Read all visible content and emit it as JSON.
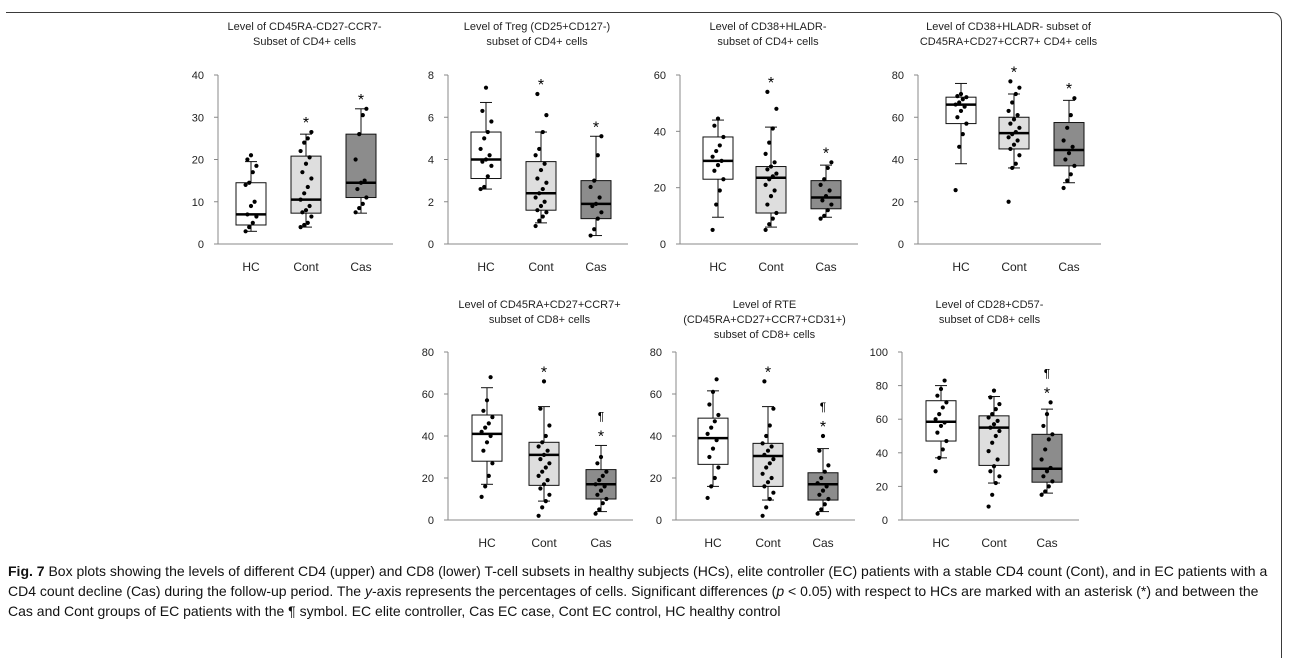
{
  "caption": {
    "fig_label": "Fig. 7",
    "text_1": " Box plots showing the levels of different CD4 (upper) and CD8 (lower) T-cell subsets in healthy subjects (HCs), elite controller (EC) patients with a stable CD4 count (Cont), and in EC patients with a CD4 count decline (Cas) during the follow-up period. The ",
    "y_italic": "y",
    "text_2": "-axis represents the percentages of cells. Significant differences (",
    "p_italic": "p",
    "text_3": " < 0.05) with respect to HCs are marked with an asterisk (*) and between the Cas and Cont groups of EC patients with the ¶ symbol. EC elite controller, Cas EC case, Cont EC control, HC healthy control"
  },
  "style": {
    "box_colors": [
      "#ffffff",
      "#dedede",
      "#8c8c8c"
    ],
    "point_color": "#000000"
  },
  "chart_data": [
    {
      "type": "box",
      "title": [
        "Level of CD45RA-CD27-CCR7-",
        "Subset of CD4+ cells"
      ],
      "categories": [
        "HC",
        "Cont",
        "Cas"
      ],
      "ylim": [
        0,
        40
      ],
      "yticks": [
        0,
        10,
        20,
        30,
        40
      ],
      "legend": "none",
      "grid": false,
      "boxes": [
        {
          "min": 3,
          "q1": 4.5,
          "median": 7,
          "q3": 14.5,
          "max": 19.5,
          "points": [
            3,
            4,
            5,
            6.5,
            7,
            9,
            10,
            14,
            14.5,
            17,
            18.5,
            20,
            21
          ],
          "markers": []
        },
        {
          "min": 4,
          "q1": 7.3,
          "median": 10.5,
          "q3": 20.8,
          "max": 26,
          "points": [
            4,
            4.5,
            5,
            6.5,
            7.5,
            8,
            9,
            10.5,
            12,
            13.5,
            15.5,
            17,
            19,
            20.5,
            22,
            24,
            25,
            26.5
          ],
          "markers": [
            "*"
          ]
        },
        {
          "min": 7.3,
          "q1": 11,
          "median": 14.5,
          "q3": 26,
          "max": 32,
          "points": [
            7.5,
            8.5,
            9.5,
            11,
            13,
            14.5,
            15,
            20,
            26,
            30.5,
            32
          ],
          "markers": [
            "*"
          ]
        }
      ]
    },
    {
      "type": "box",
      "title": [
        "Level of Treg (CD25+CD127-)",
        "subset of CD4+ cells"
      ],
      "categories": [
        "HC",
        "Cont",
        "Cas"
      ],
      "ylim": [
        0,
        8
      ],
      "yticks": [
        0,
        2,
        4,
        6,
        8
      ],
      "legend": "none",
      "grid": false,
      "boxes": [
        {
          "min": 2.6,
          "q1": 3.1,
          "median": 4,
          "q3": 5.3,
          "max": 6.7,
          "points": [
            2.6,
            2.7,
            3.2,
            3.7,
            3.9,
            4,
            4.2,
            4.5,
            5,
            5.3,
            5.8,
            6.3,
            7.4
          ],
          "markers": []
        },
        {
          "min": 1,
          "q1": 1.6,
          "median": 2.4,
          "q3": 3.9,
          "max": 5.3,
          "points": [
            0.85,
            1.1,
            1.3,
            1.5,
            1.6,
            1.8,
            2,
            2.2,
            2.4,
            2.6,
            2.9,
            3.1,
            3.5,
            3.8,
            4.2,
            4.5,
            5.3,
            6.1,
            7.1
          ],
          "markers": [
            "*"
          ]
        },
        {
          "min": 0.4,
          "q1": 1.2,
          "median": 1.9,
          "q3": 3,
          "max": 5.1,
          "points": [
            0.4,
            0.7,
            1.2,
            1.5,
            1.8,
            1.9,
            2.2,
            2.7,
            3,
            4.2,
            5.1
          ],
          "markers": [
            "*"
          ]
        }
      ]
    },
    {
      "type": "box",
      "title": [
        "Level of CD38+HLADR-",
        "subset of CD4+ cells"
      ],
      "categories": [
        "HC",
        "Cont",
        "Cas"
      ],
      "ylim": [
        0,
        60
      ],
      "yticks": [
        0,
        20,
        40,
        60
      ],
      "legend": "none",
      "grid": false,
      "boxes": [
        {
          "min": 9.5,
          "q1": 23,
          "median": 29.5,
          "q3": 38,
          "max": 44,
          "points": [
            5,
            14,
            19,
            23,
            26,
            28,
            29.5,
            31,
            33,
            35,
            38,
            42,
            44.5
          ],
          "markers": []
        },
        {
          "min": 6,
          "q1": 11,
          "median": 23.5,
          "q3": 27.5,
          "max": 41.5,
          "points": [
            5,
            7,
            9,
            11,
            14,
            17,
            19,
            21,
            23,
            24,
            25,
            26.5,
            27.5,
            29,
            32,
            36,
            41,
            48,
            54
          ],
          "markers": [
            "*"
          ]
        },
        {
          "min": 9.5,
          "q1": 12.5,
          "median": 16.5,
          "q3": 22.5,
          "max": 28,
          "points": [
            9,
            10,
            12,
            14,
            15.5,
            17,
            19,
            21,
            23,
            27,
            29
          ],
          "markers": [
            "*"
          ]
        }
      ]
    },
    {
      "type": "box",
      "title": [
        "Level of CD38+HLADR- subset of",
        "CD45RA+CD27+CCR7+ CD4+ cells"
      ],
      "categories": [
        "HC",
        "Cont",
        "Cas"
      ],
      "ylim": [
        0,
        80
      ],
      "yticks": [
        0,
        20,
        40,
        60,
        80
      ],
      "legend": "none",
      "grid": false,
      "boxes": [
        {
          "min": 38,
          "q1": 57,
          "median": 66,
          "q3": 69.5,
          "max": 76,
          "points": [
            25.5,
            46,
            52,
            57,
            60,
            63,
            65,
            66,
            67,
            68.5,
            69.5,
            70,
            71
          ],
          "markers": []
        },
        {
          "min": 36,
          "q1": 45,
          "median": 52.5,
          "q3": 60,
          "max": 71,
          "points": [
            20,
            36,
            38,
            42,
            45,
            47,
            49,
            50.5,
            52,
            53,
            55,
            57,
            59,
            61,
            63,
            67,
            71,
            74,
            77
          ],
          "markers": [
            "*"
          ]
        },
        {
          "min": 29,
          "q1": 37,
          "median": 44.5,
          "q3": 57.5,
          "max": 68,
          "points": [
            26.5,
            30,
            33,
            37,
            40,
            43,
            46,
            49,
            55,
            61,
            69
          ],
          "markers": [
            "*"
          ]
        }
      ]
    },
    {
      "type": "box",
      "title": [
        "Level of CD45RA+CD27+CCR7+",
        "subset of CD8+ cells"
      ],
      "categories": [
        "HC",
        "Cont",
        "Cas"
      ],
      "ylim": [
        0,
        80
      ],
      "yticks": [
        0,
        20,
        40,
        60,
        80
      ],
      "legend": "none",
      "grid": false,
      "boxes": [
        {
          "min": 17,
          "q1": 28,
          "median": 41,
          "q3": 50,
          "max": 63,
          "points": [
            11,
            16,
            21,
            27,
            33,
            37,
            40,
            42,
            44,
            46,
            49,
            52,
            57,
            68
          ],
          "markers": []
        },
        {
          "min": 9,
          "q1": 16.5,
          "median": 31,
          "q3": 37,
          "max": 54,
          "points": [
            2,
            6,
            9,
            12,
            15,
            17,
            19,
            21,
            23,
            25,
            27,
            29,
            31,
            33,
            35,
            37,
            40,
            45,
            53,
            66
          ],
          "markers": [
            "*"
          ]
        },
        {
          "min": 4,
          "q1": 10,
          "median": 17,
          "q3": 24,
          "max": 35.5,
          "points": [
            3,
            5,
            8,
            10,
            12,
            14,
            16,
            17,
            19,
            21,
            23,
            27,
            30
          ],
          "markers": [
            "¶",
            "*"
          ]
        }
      ]
    },
    {
      "type": "box",
      "title": [
        "Level of RTE",
        "(CD45RA+CD27+CCR7+CD31+)",
        "subset of CD8+ cells"
      ],
      "categories": [
        "HC",
        "Cont",
        "Cas"
      ],
      "ylim": [
        0,
        80
      ],
      "yticks": [
        0,
        20,
        40,
        60,
        80
      ],
      "legend": "none",
      "grid": false,
      "boxes": [
        {
          "min": 16,
          "q1": 26.5,
          "median": 39,
          "q3": 48.5,
          "max": 61.5,
          "points": [
            10.5,
            16,
            20,
            25,
            30,
            34,
            38,
            41,
            44,
            47,
            50,
            55,
            61,
            67
          ],
          "markers": []
        },
        {
          "min": 9.5,
          "q1": 16,
          "median": 30.5,
          "q3": 36.5,
          "max": 54,
          "points": [
            2,
            6,
            10,
            13,
            16,
            18,
            20,
            22,
            25,
            27,
            29,
            31,
            33,
            35,
            36.5,
            40,
            45,
            53,
            66
          ],
          "markers": [
            "*"
          ]
        },
        {
          "min": 4,
          "q1": 9.5,
          "median": 17,
          "q3": 22.5,
          "max": 34,
          "points": [
            3,
            5,
            7.5,
            10,
            12,
            14,
            16,
            17.5,
            20,
            23,
            26,
            33,
            40
          ],
          "markers": [
            "¶",
            "*"
          ]
        }
      ]
    },
    {
      "type": "box",
      "title": [
        "Level of CD28+CD57-",
        "subset of CD8+ cells"
      ],
      "categories": [
        "HC",
        "Cont",
        "Cas"
      ],
      "ylim": [
        0,
        100
      ],
      "yticks": [
        0,
        20,
        40,
        60,
        80,
        100
      ],
      "legend": "none",
      "grid": false,
      "boxes": [
        {
          "min": 37,
          "q1": 47,
          "median": 58.5,
          "q3": 71,
          "max": 80,
          "points": [
            29,
            37,
            42,
            47,
            52,
            56,
            58,
            60,
            63,
            67,
            70,
            74,
            78,
            83
          ],
          "markers": []
        },
        {
          "min": 22,
          "q1": 32.5,
          "median": 55,
          "q3": 62,
          "max": 73.5,
          "points": [
            8,
            15,
            22,
            26,
            29,
            32,
            36,
            41,
            46,
            50,
            53,
            55,
            57,
            59,
            61,
            63,
            66,
            69,
            73,
            77
          ],
          "markers": []
        },
        {
          "min": 16,
          "q1": 22.5,
          "median": 30.5,
          "q3": 51,
          "max": 66,
          "points": [
            15,
            17,
            20,
            23,
            26,
            29,
            31,
            36,
            42,
            48,
            51,
            56,
            63,
            70
          ],
          "markers": [
            "¶",
            "*"
          ]
        }
      ]
    }
  ]
}
